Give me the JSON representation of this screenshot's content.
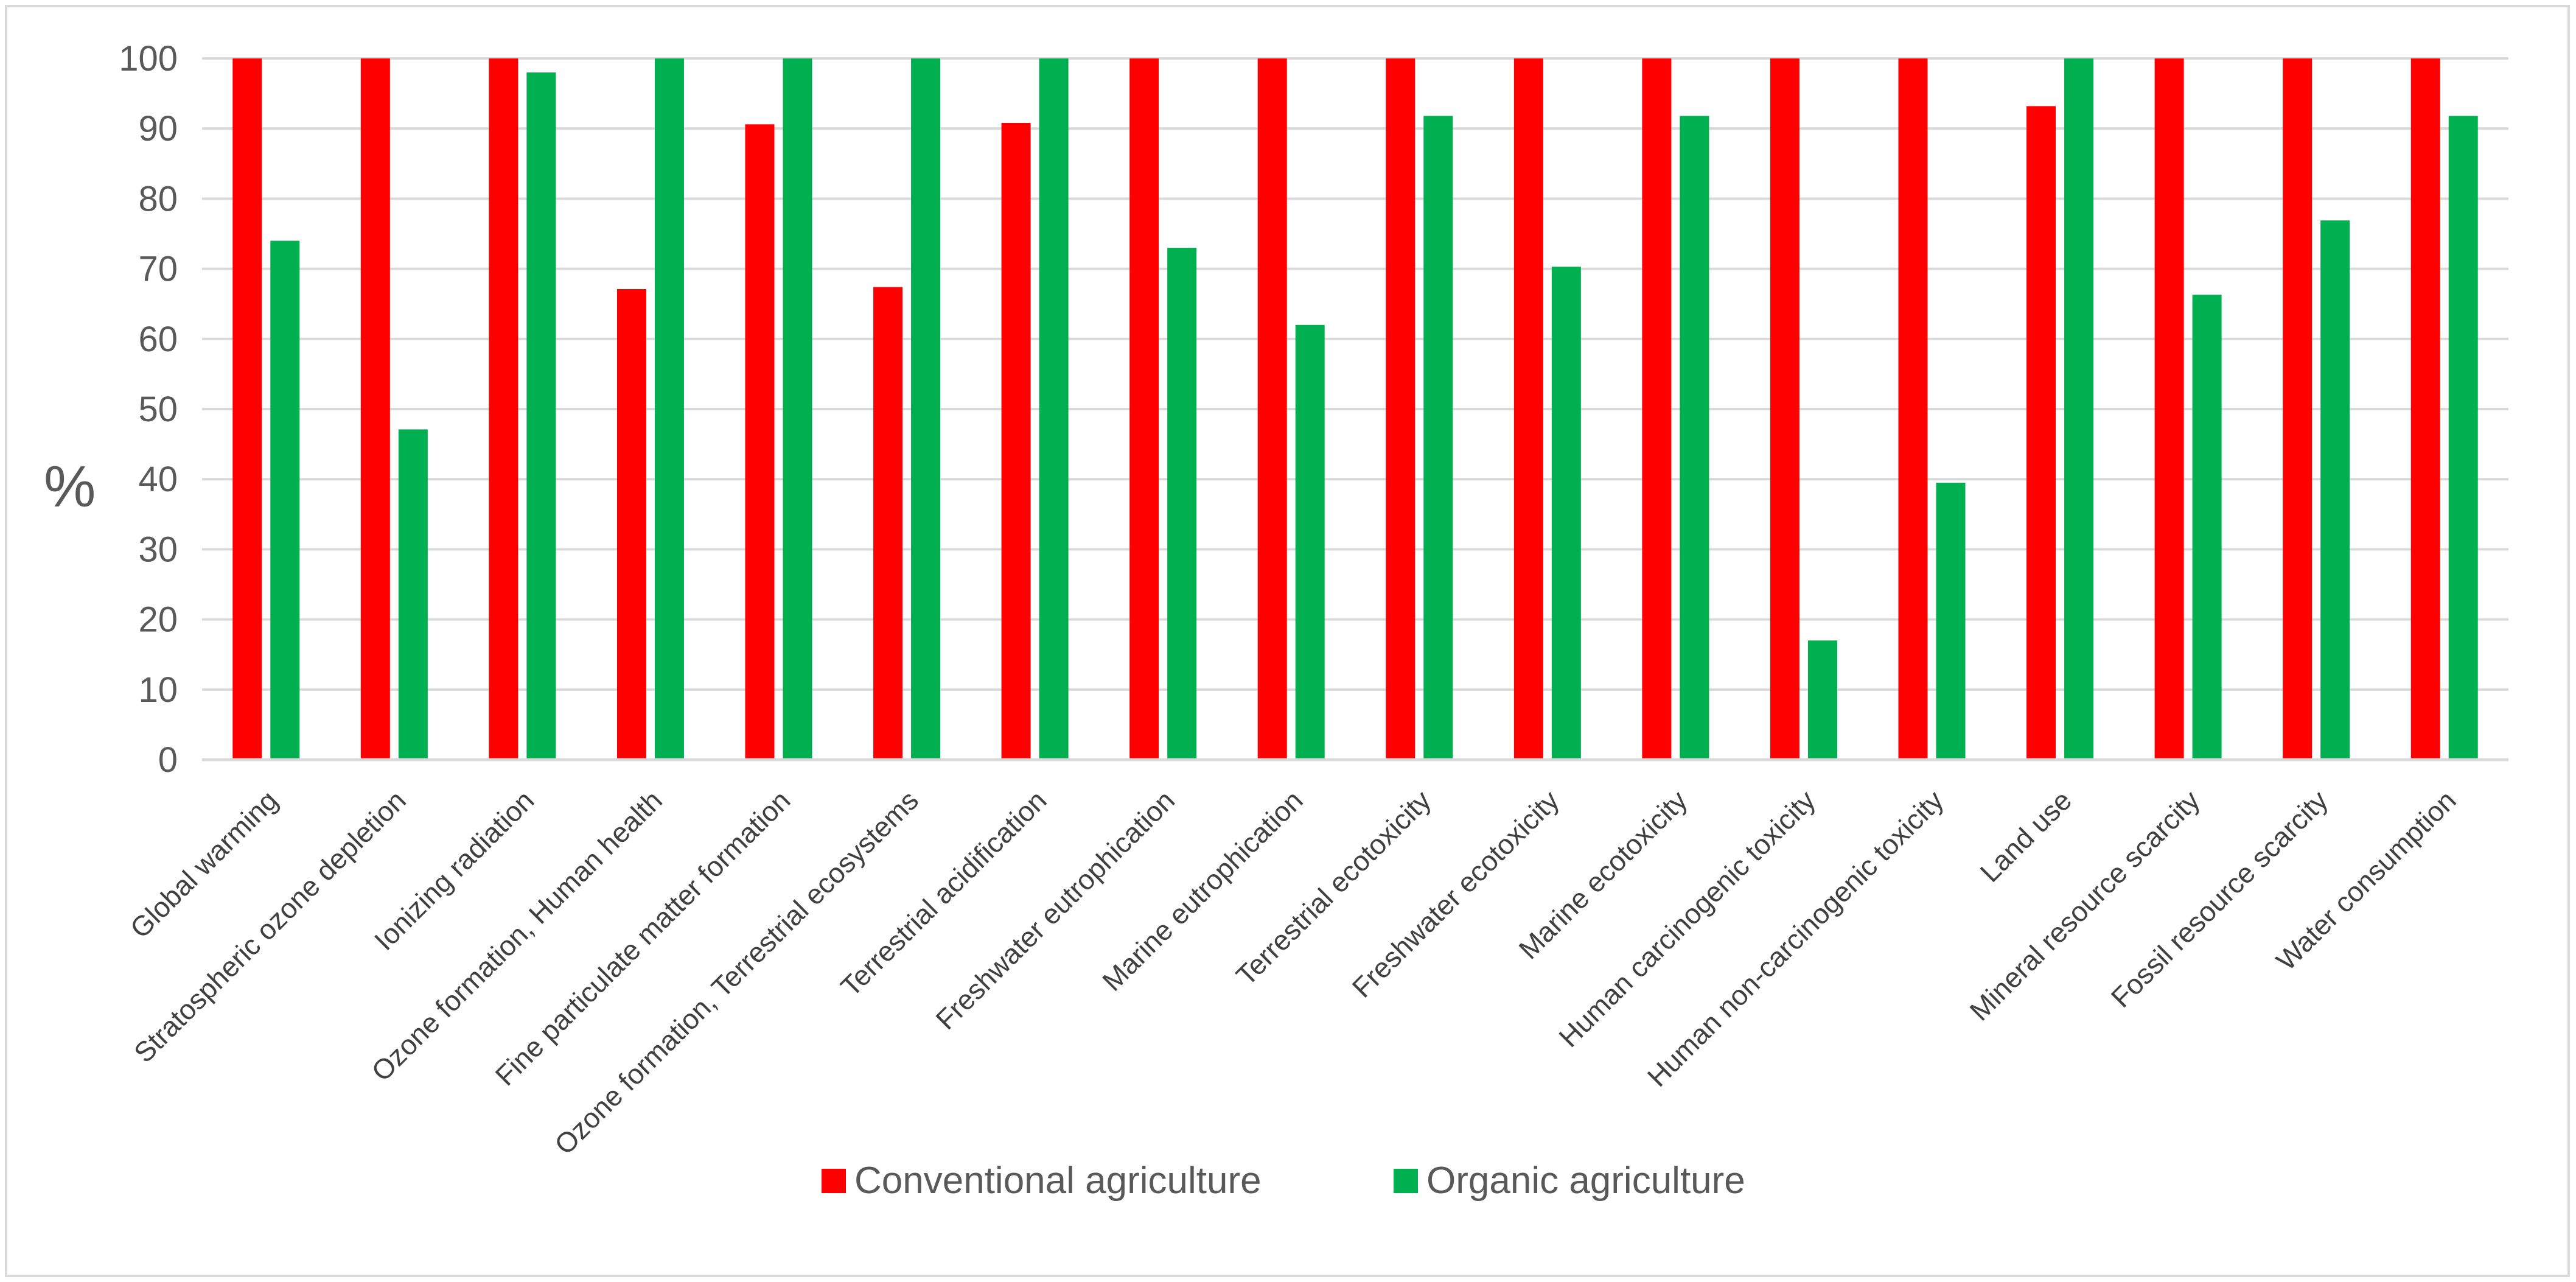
{
  "chart_data": {
    "type": "bar",
    "title": "",
    "xlabel": "",
    "ylabel": "%",
    "ylim": [
      0,
      100
    ],
    "yticks": [
      0,
      10,
      20,
      30,
      40,
      50,
      60,
      70,
      80,
      90,
      100
    ],
    "grid": true,
    "legend_position": "bottom",
    "categories": [
      "Global warming",
      "Stratospheric ozone depletion",
      "Ionizing radiation",
      "Ozone formation, Human health",
      "Fine particulate matter formation",
      "Ozone formation, Terrestrial ecosystems",
      "Terrestrial acidification",
      "Freshwater eutrophication",
      "Marine eutrophication",
      "Terrestrial ecotoxicity",
      "Freshwater ecotoxicity",
      "Marine ecotoxicity",
      "Human carcinogenic toxicity",
      "Human non-carcinogenic toxicity",
      "Land use",
      "Mineral resource scarcity",
      "Fossil resource scarcity",
      "Water consumption"
    ],
    "series": [
      {
        "name": "Conventional agriculture",
        "color": "#ff0000",
        "values": [
          100,
          100,
          100,
          67.1,
          90.6,
          67.4,
          90.8,
          100,
          100,
          100,
          100,
          100,
          100,
          100,
          93.2,
          100,
          100,
          100
        ]
      },
      {
        "name": "Organic agriculture",
        "color": "#00b050",
        "values": [
          74.0,
          47.1,
          98.0,
          100,
          100,
          100,
          100,
          73.0,
          62.0,
          91.8,
          70.3,
          91.8,
          17.0,
          39.5,
          100,
          66.3,
          76.9,
          91.8
        ]
      }
    ]
  }
}
